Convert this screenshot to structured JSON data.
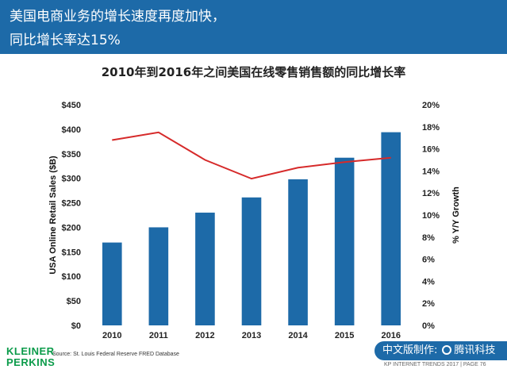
{
  "header": {
    "title_line1": "美国电商业务的增长速度再度加快，",
    "title_line2": "同比增长率达15%"
  },
  "chart_data": {
    "type": "bar",
    "title": "2010年到2016年之间美国在线零售销售额的同比增长率",
    "categories": [
      "2010",
      "2011",
      "2012",
      "2013",
      "2014",
      "2015",
      "2016"
    ],
    "series": [
      {
        "type": "bar",
        "values": [
          169,
          200,
          230,
          261,
          298,
          342,
          394
        ],
        "color": "#1d6aa8",
        "axis": "left"
      },
      {
        "type": "line",
        "values": [
          16.8,
          17.5,
          15.0,
          13.3,
          14.3,
          14.8,
          15.2
        ],
        "color": "#d62a2a",
        "axis": "right"
      }
    ],
    "ylabel": "USA Online Retail Sales ($B)",
    "y2label": "% Y/Y Growth",
    "ylim": [
      0,
      450
    ],
    "y2lim": [
      0,
      20
    ],
    "yticks": [
      "$0",
      "$50",
      "$100",
      "$150",
      "$200",
      "$250",
      "$300",
      "$350",
      "$400",
      "$450"
    ],
    "y2ticks": [
      "0%",
      "2%",
      "4%",
      "6%",
      "8%",
      "10%",
      "12%",
      "14%",
      "16%",
      "18%",
      "20%"
    ],
    "grid": false
  },
  "source": "Source: St. Louis Federal Reserve FRED Database",
  "logo": {
    "line1": "KLEINER",
    "line2": "PERKINS"
  },
  "badge": {
    "text": "中文版制作:",
    "brand": "腾讯科技"
  },
  "footer": "KP INTERNET TRENDS 2017  |  PAGE 76"
}
